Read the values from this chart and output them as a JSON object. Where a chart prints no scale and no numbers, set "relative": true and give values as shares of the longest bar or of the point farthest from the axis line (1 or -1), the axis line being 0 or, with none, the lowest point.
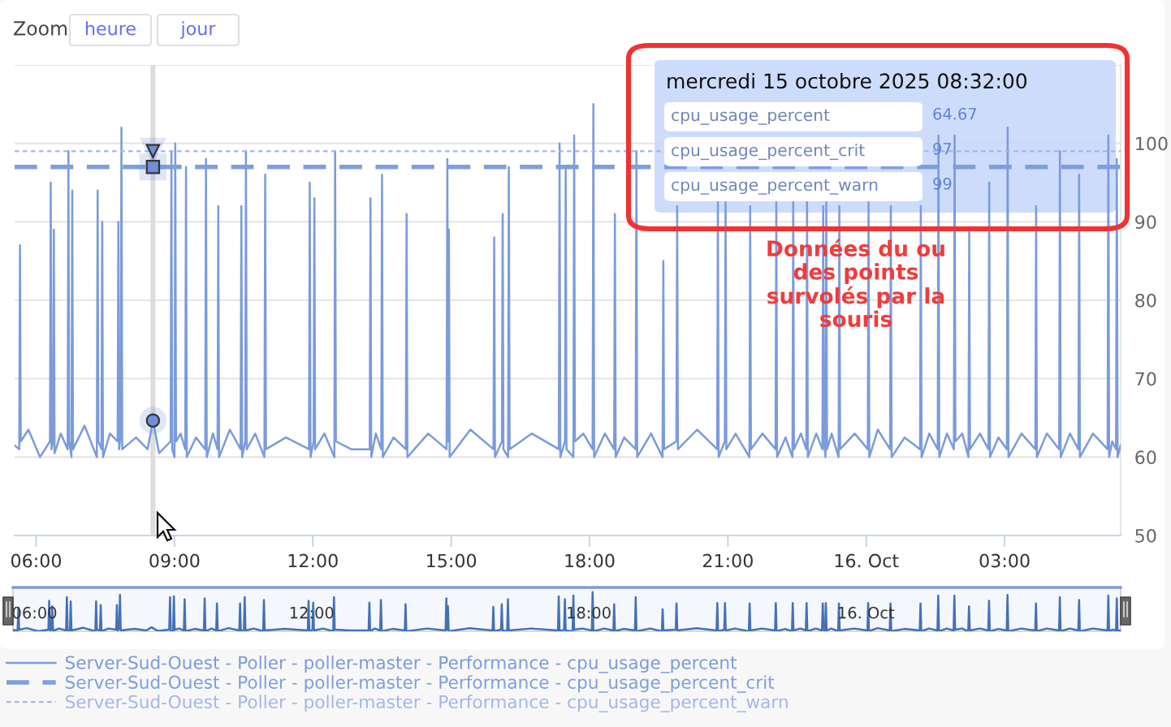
{
  "chart_data": [
    {
      "type": "line",
      "series": [
        {
          "name": "Server-Sud-Ouest - Poller - poller-master - Performance - cpu_usage_percent",
          "color": "#7b9bdb",
          "line_style": "solid",
          "x": [
            "2025-10-15T05:32",
            "2025-10-15T05:38",
            "2025-10-15T05:39",
            "2025-10-15T05:40",
            "2025-10-15T05:50",
            "2025-10-15T06:05",
            "2025-10-15T06:18",
            "2025-10-15T06:19",
            "2025-10-15T06:20",
            "2025-10-15T06:22",
            "2025-10-15T06:23",
            "2025-10-15T06:24",
            "2025-10-15T06:32",
            "2025-10-15T06:41",
            "2025-10-15T06:42",
            "2025-10-15T06:43",
            "2025-10-15T06:46",
            "2025-10-15T06:47",
            "2025-10-15T06:48",
            "2025-10-15T07:03",
            "2025-10-15T07:19",
            "2025-10-15T07:20",
            "2025-10-15T07:21",
            "2025-10-15T07:25",
            "2025-10-15T07:26",
            "2025-10-15T07:27",
            "2025-10-15T07:36",
            "2025-10-15T07:46",
            "2025-10-15T07:47",
            "2025-10-15T07:48",
            "2025-10-15T07:50",
            "2025-10-15T07:51",
            "2025-10-15T07:52",
            "2025-10-15T08:10",
            "2025-10-15T08:25",
            "2025-10-15T08:32",
            "2025-10-15T08:40",
            "2025-10-15T08:55",
            "2025-10-15T08:56",
            "2025-10-15T08:57",
            "2025-10-15T09:00",
            "2025-10-15T09:01",
            "2025-10-15T09:02",
            "2025-10-15T09:08",
            "2025-10-15T09:14",
            "2025-10-15T09:15",
            "2025-10-15T09:16",
            "2025-10-15T09:28",
            "2025-10-15T09:40",
            "2025-10-15T09:41",
            "2025-10-15T09:42",
            "2025-10-15T09:50",
            "2025-10-15T09:56",
            "2025-10-15T09:57",
            "2025-10-15T09:58",
            "2025-10-15T10:12",
            "2025-10-15T10:26",
            "2025-10-15T10:27",
            "2025-10-15T10:28",
            "2025-10-15T10:32",
            "2025-10-15T10:33",
            "2025-10-15T10:34",
            "2025-10-15T10:45",
            "2025-10-15T10:57",
            "2025-10-15T10:58",
            "2025-10-15T10:59",
            "2025-10-15T11:25",
            "2025-10-15T11:55",
            "2025-10-15T11:56",
            "2025-10-15T11:57",
            "2025-10-15T12:01",
            "2025-10-15T12:02",
            "2025-10-15T12:03",
            "2025-10-15T12:15",
            "2025-10-15T12:28",
            "2025-10-15T12:29",
            "2025-10-15T12:30",
            "2025-10-15T12:50",
            "2025-10-15T13:14",
            "2025-10-15T13:15",
            "2025-10-15T13:16",
            "2025-10-15T13:22",
            "2025-10-15T13:29",
            "2025-10-15T13:30",
            "2025-10-15T13:31",
            "2025-10-15T13:45",
            "2025-10-15T14:01",
            "2025-10-15T14:02",
            "2025-10-15T14:03",
            "2025-10-15T14:30",
            "2025-10-15T14:54",
            "2025-10-15T14:55",
            "2025-10-15T14:56",
            "2025-10-15T14:57",
            "2025-10-15T14:58",
            "2025-10-15T15:25",
            "2025-10-15T15:55",
            "2025-10-15T15:56",
            "2025-10-15T15:57",
            "2025-10-15T16:06",
            "2025-10-15T16:07",
            "2025-10-15T16:08",
            "2025-10-15T16:14",
            "2025-10-15T16:15",
            "2025-10-15T16:16",
            "2025-10-15T16:45",
            "2025-10-15T17:20",
            "2025-10-15T17:21",
            "2025-10-15T17:22",
            "2025-10-15T17:28",
            "2025-10-15T17:29",
            "2025-10-15T17:30",
            "2025-10-15T17:39",
            "2025-10-15T17:40",
            "2025-10-15T17:41",
            "2025-10-15T17:52",
            "2025-10-15T18:04",
            "2025-10-15T18:05",
            "2025-10-15T18:06",
            "2025-10-15T18:20",
            "2025-10-15T18:32",
            "2025-10-15T18:33",
            "2025-10-15T18:34",
            "2025-10-15T18:45",
            "2025-10-15T19:00",
            "2025-10-15T19:01",
            "2025-10-15T19:02",
            "2025-10-15T19:20",
            "2025-10-15T19:35",
            "2025-10-15T19:36",
            "2025-10-15T19:37",
            "2025-10-15T19:53",
            "2025-10-15T19:54",
            "2025-10-15T19:55",
            "2025-10-15T20:20",
            "2025-10-15T20:46",
            "2025-10-15T20:47",
            "2025-10-15T20:48",
            "2025-10-15T20:56",
            "2025-10-15T20:57",
            "2025-10-15T20:58",
            "2025-10-15T21:10",
            "2025-10-15T21:28",
            "2025-10-15T21:29",
            "2025-10-15T21:30",
            "2025-10-15T21:45",
            "2025-10-15T22:02",
            "2025-10-15T22:03",
            "2025-10-15T22:04",
            "2025-10-15T22:15",
            "2025-10-15T22:24",
            "2025-10-15T22:25",
            "2025-10-15T22:26",
            "2025-10-15T22:35",
            "2025-10-15T22:42",
            "2025-10-15T22:43",
            "2025-10-15T22:44",
            "2025-10-15T22:55",
            "2025-10-15T23:03",
            "2025-10-15T23:04",
            "2025-10-15T23:05",
            "2025-10-15T23:07",
            "2025-10-15T23:08",
            "2025-10-15T23:09",
            "2025-10-15T23:15",
            "2025-10-15T23:24",
            "2025-10-15T23:25",
            "2025-10-15T23:26",
            "2025-10-15T23:45",
            "2025-10-16T00:02",
            "2025-10-16T00:03",
            "2025-10-16T00:04",
            "2025-10-16T00:15",
            "2025-10-16T00:31",
            "2025-10-16T00:32",
            "2025-10-16T00:33",
            "2025-10-16T00:50",
            "2025-10-16T01:10",
            "2025-10-16T01:11",
            "2025-10-16T01:12",
            "2025-10-16T01:22",
            "2025-10-16T01:33",
            "2025-10-16T01:34",
            "2025-10-16T01:35",
            "2025-10-16T01:45",
            "2025-10-16T01:54",
            "2025-10-16T01:55",
            "2025-10-16T01:56",
            "2025-10-16T02:05",
            "2025-10-16T02:13",
            "2025-10-16T02:14",
            "2025-10-16T02:15",
            "2025-10-16T02:28",
            "2025-10-16T02:39",
            "2025-10-16T02:40",
            "2025-10-16T02:41",
            "2025-10-16T02:52",
            "2025-10-16T03:03",
            "2025-10-16T03:04",
            "2025-10-16T03:05",
            "2025-10-16T03:22",
            "2025-10-16T03:40",
            "2025-10-16T03:41",
            "2025-10-16T03:42",
            "2025-10-16T03:55",
            "2025-10-16T04:11",
            "2025-10-16T04:12",
            "2025-10-16T04:13",
            "2025-10-16T04:25",
            "2025-10-16T04:36",
            "2025-10-16T04:37",
            "2025-10-16T04:38",
            "2025-10-16T04:55",
            "2025-10-16T05:14",
            "2025-10-16T05:15",
            "2025-10-16T05:16",
            "2025-10-16T05:20",
            "2025-10-16T05:25",
            "2025-10-16T05:26",
            "2025-10-16T05:27",
            "2025-10-16T05:31"
          ],
          "values": [
            61.5,
            61,
            87,
            62,
            63.5,
            60,
            62,
            95,
            61,
            62,
            89,
            60.5,
            63,
            61,
            99,
            62,
            60,
            94,
            61,
            64,
            60,
            94,
            62,
            61,
            90,
            60,
            63,
            62,
            90,
            61,
            63,
            102,
            61,
            62.5,
            61,
            64.67,
            60.5,
            62,
            99,
            61,
            60,
            100,
            62,
            63,
            61,
            97,
            60,
            62.5,
            61,
            98,
            60,
            63,
            61,
            92,
            60,
            63.5,
            61,
            92,
            60,
            62,
            99,
            61,
            63,
            60,
            96,
            61,
            62.5,
            61,
            95,
            60,
            62,
            93,
            61,
            63,
            60,
            99,
            62,
            61,
            61,
            93,
            60,
            63,
            61,
            96,
            60,
            62.5,
            61,
            91,
            60,
            63,
            61,
            98,
            62,
            89,
            60,
            63.5,
            61,
            88,
            60,
            62,
            91,
            61,
            60,
            97,
            61,
            63,
            61,
            100,
            60,
            62,
            97,
            61,
            60,
            101,
            62,
            63,
            61,
            105,
            60,
            63,
            61,
            91,
            60,
            62.5,
            61,
            99,
            60,
            63,
            60,
            85,
            61,
            62,
            92,
            61,
            63.5,
            61,
            92.5,
            60,
            62,
            92.5,
            61,
            63,
            60,
            92,
            61,
            63,
            61,
            92.5,
            60,
            62.5,
            60,
            92.5,
            61,
            63,
            61,
            92.5,
            60,
            63,
            61,
            92,
            62,
            60,
            92.5,
            61,
            63,
            60,
            92,
            61,
            63,
            61,
            92.5,
            60,
            63.5,
            61,
            92,
            60,
            62.5,
            61,
            92,
            60,
            63,
            61,
            101,
            60,
            63,
            61,
            101,
            62,
            63,
            60,
            89,
            61,
            63,
            61,
            95,
            60,
            62.5,
            61,
            102,
            60,
            63,
            61,
            92,
            60,
            63,
            61,
            99,
            60,
            63,
            61,
            96,
            60,
            63,
            61,
            101,
            60,
            62,
            61,
            98,
            60,
            61.5
          ]
        },
        {
          "name": "Server-Sud-Ouest - Poller - poller-master - Performance - cpu_usage_percent_crit",
          "color": "#7f9edc",
          "line_style": "dashed",
          "x": [
            "2025-10-15T05:32",
            "2025-10-16T05:31"
          ],
          "values": [
            97,
            97
          ]
        },
        {
          "name": "Server-Sud-Ouest - Poller - poller-master - Performance - cpu_usage_percent_warn",
          "color": "#a3b6e8",
          "line_style": "dotted",
          "x": [
            "2025-10-15T05:32",
            "2025-10-16T05:31"
          ],
          "values": [
            99,
            99
          ]
        },
        {
          "type": "scatter",
          "marker": "circle",
          "color": "#6f8fd6",
          "x": [
            "2025-10-15T08:32"
          ],
          "values": [
            64.67
          ]
        },
        {
          "type": "scatter",
          "marker": "square",
          "color": "#6f8fd6",
          "x": [
            "2025-10-15T08:32"
          ],
          "values": [
            97
          ]
        },
        {
          "type": "scatter",
          "marker": "triangle",
          "color": "#6f8fd6",
          "x": [
            "2025-10-15T08:32"
          ],
          "values": [
            99
          ]
        }
      ],
      "xlim": [
        "2025-10-15T05:32",
        "2025-10-16T05:31"
      ],
      "xticks": [
        {
          "value": "2025-10-15T06:00",
          "label": "06:00"
        },
        {
          "value": "2025-10-15T09:00",
          "label": "09:00"
        },
        {
          "value": "2025-10-15T12:00",
          "label": "12:00"
        },
        {
          "value": "2025-10-15T15:00",
          "label": "15:00"
        },
        {
          "value": "2025-10-15T18:00",
          "label": "18:00"
        },
        {
          "value": "2025-10-15T21:00",
          "label": "21:00"
        },
        {
          "value": "2025-10-16T00:00",
          "label": "16. Oct"
        },
        {
          "value": "2025-10-16T03:00",
          "label": "03:00"
        }
      ],
      "ylim": [
        50,
        110
      ],
      "yticks": [
        50,
        60,
        70,
        80,
        90,
        100,
        {
          "value": 110,
          "label": null
        }
      ],
      "ref_lines": [
        {
          "axis": "x",
          "value": "2025-10-15T08:32",
          "color": "#dddddd"
        }
      ],
      "grid": "y",
      "legend": "bottom",
      "annotations": [
        "Zoom",
        "heure",
        "jour",
        "mercredi 15 octobre 2025 08:32:00",
        "cpu_usage_percent",
        "64.67",
        "cpu_usage_percent_crit",
        "97",
        "cpu_usage_percent_warn",
        "99",
        "Données du ou\ndes points\nsurvolés par la\nsouris"
      ]
    },
    {
      "type": "line",
      "relative": true,
      "color": "#4570b5",
      "x": [
        "2025-10-15T05:32",
        "2025-10-15T05:38",
        "2025-10-15T05:39",
        "2025-10-15T05:40",
        "2025-10-15T05:50",
        "2025-10-15T06:05",
        "2025-10-15T06:18",
        "2025-10-15T06:19",
        "2025-10-15T06:20",
        "2025-10-15T06:22",
        "2025-10-15T06:23",
        "2025-10-15T06:24",
        "2025-10-15T06:32",
        "2025-10-15T06:41",
        "2025-10-15T06:42",
        "2025-10-15T06:43",
        "2025-10-15T06:46",
        "2025-10-15T06:47",
        "2025-10-15T06:48",
        "2025-10-15T07:03",
        "2025-10-15T07:19",
        "2025-10-15T07:20",
        "2025-10-15T07:21",
        "2025-10-15T07:25",
        "2025-10-15T07:26",
        "2025-10-15T07:27",
        "2025-10-15T07:36",
        "2025-10-15T07:46",
        "2025-10-15T07:47",
        "2025-10-15T07:48",
        "2025-10-15T07:50",
        "2025-10-15T07:51",
        "2025-10-15T07:52",
        "2025-10-15T08:10",
        "2025-10-15T08:25",
        "2025-10-15T08:32",
        "2025-10-15T08:40",
        "2025-10-15T08:55",
        "2025-10-15T08:56",
        "2025-10-15T08:57",
        "2025-10-15T09:00",
        "2025-10-15T09:01",
        "2025-10-15T09:02",
        "2025-10-15T09:08",
        "2025-10-15T09:14",
        "2025-10-15T09:15",
        "2025-10-15T09:16",
        "2025-10-15T09:28",
        "2025-10-15T09:40",
        "2025-10-15T09:41",
        "2025-10-15T09:42",
        "2025-10-15T09:50",
        "2025-10-15T09:56",
        "2025-10-15T09:57",
        "2025-10-15T09:58",
        "2025-10-15T10:12",
        "2025-10-15T10:26",
        "2025-10-15T10:27",
        "2025-10-15T10:28",
        "2025-10-15T10:32",
        "2025-10-15T10:33",
        "2025-10-15T10:34",
        "2025-10-15T10:45",
        "2025-10-15T10:57",
        "2025-10-15T10:58",
        "2025-10-15T10:59",
        "2025-10-15T11:25",
        "2025-10-15T11:55",
        "2025-10-15T11:56",
        "2025-10-15T11:57",
        "2025-10-15T12:01",
        "2025-10-15T12:02",
        "2025-10-15T12:03",
        "2025-10-15T12:15",
        "2025-10-15T12:28",
        "2025-10-15T12:29",
        "2025-10-15T12:30",
        "2025-10-15T12:50",
        "2025-10-15T13:14",
        "2025-10-15T13:15",
        "2025-10-15T13:16",
        "2025-10-15T13:22",
        "2025-10-15T13:29",
        "2025-10-15T13:30",
        "2025-10-15T13:31",
        "2025-10-15T13:45",
        "2025-10-15T14:01",
        "2025-10-15T14:02",
        "2025-10-15T14:03",
        "2025-10-15T14:30",
        "2025-10-15T14:54",
        "2025-10-15T14:55",
        "2025-10-15T14:56",
        "2025-10-15T14:57",
        "2025-10-15T14:58",
        "2025-10-15T15:25",
        "2025-10-15T15:55",
        "2025-10-15T15:56",
        "2025-10-15T15:57",
        "2025-10-15T16:06",
        "2025-10-15T16:07",
        "2025-10-15T16:08",
        "2025-10-15T16:14",
        "2025-10-15T16:15",
        "2025-10-15T16:16",
        "2025-10-15T16:45",
        "2025-10-15T17:20",
        "2025-10-15T17:21",
        "2025-10-15T17:22",
        "2025-10-15T17:28",
        "2025-10-15T17:29",
        "2025-10-15T17:30",
        "2025-10-15T17:39",
        "2025-10-15T17:40",
        "2025-10-15T17:41",
        "2025-10-15T17:52",
        "2025-10-15T18:04",
        "2025-10-15T18:05",
        "2025-10-15T18:06",
        "2025-10-15T18:20",
        "2025-10-15T18:32",
        "2025-10-15T18:33",
        "2025-10-15T18:34",
        "2025-10-15T18:45",
        "2025-10-15T19:00",
        "2025-10-15T19:01",
        "2025-10-15T19:02",
        "2025-10-15T19:20",
        "2025-10-15T19:35",
        "2025-10-15T19:36",
        "2025-10-15T19:37",
        "2025-10-15T19:53",
        "2025-10-15T19:54",
        "2025-10-15T19:55",
        "2025-10-15T20:20",
        "2025-10-15T20:46",
        "2025-10-15T20:47",
        "2025-10-15T20:48",
        "2025-10-15T20:56",
        "2025-10-15T20:57",
        "2025-10-15T20:58",
        "2025-10-15T21:10",
        "2025-10-15T21:28",
        "2025-10-15T21:29",
        "2025-10-15T21:30",
        "2025-10-15T21:45",
        "2025-10-15T22:02",
        "2025-10-15T22:03",
        "2025-10-15T22:04",
        "2025-10-15T22:15",
        "2025-10-15T22:24",
        "2025-10-15T22:25",
        "2025-10-15T22:26",
        "2025-10-15T22:35",
        "2025-10-15T22:42",
        "2025-10-15T22:43",
        "2025-10-15T22:44",
        "2025-10-15T22:55",
        "2025-10-15T23:03",
        "2025-10-15T23:04",
        "2025-10-15T23:05",
        "2025-10-15T23:07",
        "2025-10-15T23:08",
        "2025-10-15T23:09",
        "2025-10-15T23:15",
        "2025-10-15T23:24",
        "2025-10-15T23:25",
        "2025-10-15T23:26",
        "2025-10-15T23:45",
        "2025-10-16T00:02",
        "2025-10-16T00:03",
        "2025-10-16T00:04",
        "2025-10-16T00:15",
        "2025-10-16T00:31",
        "2025-10-16T00:32",
        "2025-10-16T00:33",
        "2025-10-16T00:50",
        "2025-10-16T01:10",
        "2025-10-16T01:11",
        "2025-10-16T01:12",
        "2025-10-16T01:22",
        "2025-10-16T01:33",
        "2025-10-16T01:34",
        "2025-10-16T01:35",
        "2025-10-16T01:45",
        "2025-10-16T01:54",
        "2025-10-16T01:55",
        "2025-10-16T01:56",
        "2025-10-16T02:05",
        "2025-10-16T02:13",
        "2025-10-16T02:14",
        "2025-10-16T02:15",
        "2025-10-16T02:28",
        "2025-10-16T02:39",
        "2025-10-16T02:40",
        "2025-10-16T02:41",
        "2025-10-16T02:52",
        "2025-10-16T03:03",
        "2025-10-16T03:04",
        "2025-10-16T03:05",
        "2025-10-16T03:22",
        "2025-10-16T03:40",
        "2025-10-16T03:41",
        "2025-10-16T03:42",
        "2025-10-16T03:55",
        "2025-10-16T04:11",
        "2025-10-16T04:12",
        "2025-10-16T04:13",
        "2025-10-16T04:25",
        "2025-10-16T04:36",
        "2025-10-16T04:37",
        "2025-10-16T04:38",
        "2025-10-16T04:55",
        "2025-10-16T05:14",
        "2025-10-16T05:15",
        "2025-10-16T05:16",
        "2025-10-16T05:20",
        "2025-10-16T05:25",
        "2025-10-16T05:26",
        "2025-10-16T05:27",
        "2025-10-16T05:31"
      ],
      "values": [
        0.03,
        0.02,
        0.6,
        0.04,
        0.08,
        0,
        0.04,
        0.78,
        0.02,
        0.04,
        0.64,
        0.01,
        0.07,
        0.02,
        0.87,
        0.04,
        0,
        0.76,
        0.02,
        0.09,
        0,
        0.76,
        0.04,
        0.02,
        0.67,
        0,
        0.07,
        0.04,
        0.67,
        0.02,
        0.07,
        0.93,
        0.02,
        0.06,
        0.02,
        0.1,
        0.01,
        0.04,
        0.87,
        0.02,
        0,
        0.89,
        0.04,
        0.07,
        0.02,
        0.82,
        0,
        0.06,
        0.02,
        0.84,
        0,
        0.07,
        0.02,
        0.71,
        0,
        0.08,
        0.02,
        0.71,
        0,
        0.04,
        0.87,
        0.02,
        0.07,
        0,
        0.8,
        0.02,
        0.06,
        0.02,
        0.78,
        0,
        0.04,
        0.73,
        0.02,
        0.07,
        0,
        0.87,
        0.04,
        0.02,
        0.02,
        0.73,
        0,
        0.07,
        0.02,
        0.8,
        0,
        0.06,
        0.02,
        0.69,
        0,
        0.07,
        0.02,
        0.84,
        0.04,
        0.64,
        0,
        0.08,
        0.02,
        0.62,
        0,
        0.04,
        0.69,
        0.02,
        0,
        0.82,
        0.02,
        0.07,
        0.02,
        0.89,
        0,
        0.04,
        0.82,
        0.02,
        0,
        0.91,
        0.04,
        0.07,
        0.02,
        1,
        0,
        0.07,
        0.02,
        0.69,
        0,
        0.06,
        0.02,
        0.87,
        0,
        0.07,
        0,
        0.56,
        0.02,
        0.04,
        0.71,
        0.02,
        0.08,
        0.02,
        0.72,
        0,
        0.04,
        0.72,
        0.02,
        0.07,
        0,
        0.71,
        0.02,
        0.07,
        0.02,
        0.72,
        0,
        0.06,
        0,
        0.72,
        0.02,
        0.07,
        0.02,
        0.72,
        0,
        0.07,
        0.02,
        0.71,
        0.04,
        0,
        0.72,
        0.02,
        0.07,
        0,
        0.71,
        0.02,
        0.07,
        0.02,
        0.72,
        0,
        0.08,
        0.02,
        0.71,
        0,
        0.06,
        0.02,
        0.71,
        0,
        0.07,
        0.02,
        0.91,
        0,
        0.07,
        0.02,
        0.91,
        0.04,
        0.07,
        0,
        0.64,
        0.02,
        0.07,
        0.02,
        0.78,
        0,
        0.06,
        0.02,
        0.93,
        0,
        0.07,
        0.02,
        0.71,
        0,
        0.07,
        0.02,
        0.87,
        0,
        0.07,
        0.02,
        0.8,
        0,
        0.07,
        0.02,
        0.91,
        0,
        0.04,
        0.02,
        0.84,
        0,
        0.03
      ],
      "xlim": [
        "2025-10-15T05:32",
        "2025-10-16T05:31"
      ],
      "xticks": [
        {
          "value": "2025-10-15T06:00",
          "label": "06:00"
        },
        {
          "value": "2025-10-15T12:00",
          "label": "12:00"
        },
        {
          "value": "2025-10-15T18:00",
          "label": "18:00"
        },
        {
          "value": "2025-10-16T00:00",
          "label": "16. Oct"
        }
      ],
      "tick_labels": "x"
    }
  ]
}
